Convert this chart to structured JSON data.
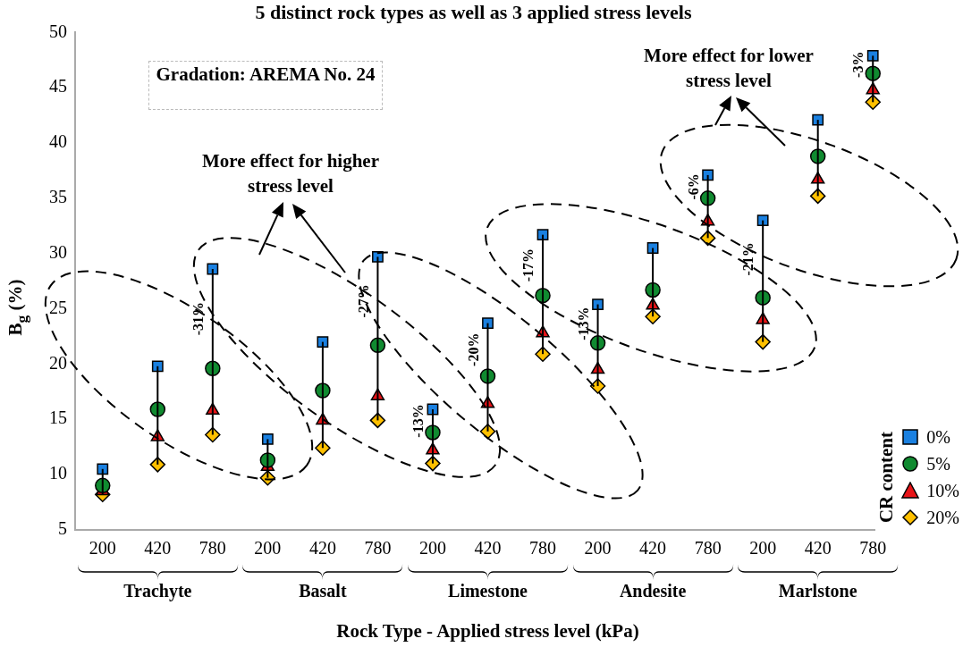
{
  "chart_data": {
    "type": "scatter",
    "title": "5 distinct rock types as well as 3 applied stress levels",
    "xlabel": "Rock Type - Applied stress level (kPa)",
    "ylabel": "B$_{g}$ (%)",
    "legend_title": "CR content",
    "legend": "bottom right",
    "grid": false,
    "ylim": [
      5,
      50
    ],
    "yticks": [
      5,
      10,
      15,
      20,
      25,
      30,
      35,
      40,
      45,
      50
    ],
    "categories": [
      "200",
      "420",
      "780",
      "200",
      "420",
      "780",
      "200",
      "420",
      "780",
      "200",
      "420",
      "780",
      "200",
      "420",
      "780"
    ],
    "series": [
      {
        "name": "0%",
        "color": "#1a80e0",
        "marker": "square",
        "values": [
          10.5,
          19.8,
          28.6,
          13.2,
          22.0,
          29.7,
          15.9,
          23.7,
          31.7,
          25.4,
          30.5,
          37.1,
          33.0,
          42.1,
          47.9
        ]
      },
      {
        "name": "5%",
        "color": "#108a30",
        "marker": "circle",
        "values": [
          9.0,
          15.9,
          19.6,
          11.3,
          17.6,
          21.7,
          13.8,
          18.9,
          26.2,
          21.9,
          26.7,
          35.0,
          26.0,
          38.8,
          46.3
        ]
      },
      {
        "name": "10%",
        "color": "#e81418",
        "marker": "triangle",
        "values": [
          8.5,
          13.4,
          15.8,
          10.7,
          14.9,
          17.1,
          12.2,
          16.4,
          22.8,
          19.5,
          25.3,
          32.9,
          24.0,
          36.7,
          44.8
        ]
      },
      {
        "name": "20%",
        "color": "#ffc000",
        "marker": "diamond",
        "values": [
          8.2,
          10.9,
          13.6,
          9.7,
          12.4,
          14.9,
          11.0,
          13.9,
          20.9,
          18.0,
          24.3,
          31.4,
          22.0,
          35.2,
          43.7
        ]
      }
    ],
    "annotations": [
      "Trachyte",
      "Basalt",
      "Limestone",
      "Andesite",
      "Marlstone",
      "Gradation: AREMA No. 24",
      "More effect for higher stress level",
      "More effect for lower stress level",
      "-31%",
      "-27%",
      "-13%",
      "-20%",
      "-17%",
      "-13%",
      "-6%",
      "-21%",
      "-3%"
    ]
  }
}
